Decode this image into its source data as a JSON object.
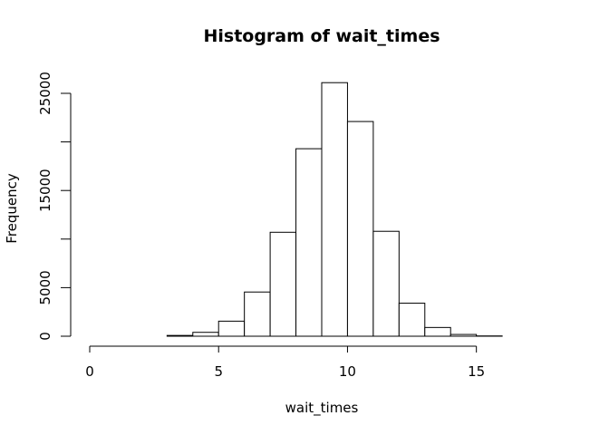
{
  "chart_data": {
    "type": "bar",
    "title": "Histogram of wait_times",
    "xlabel": "wait_times",
    "ylabel": "Frequency",
    "xlim": [
      0,
      18
    ],
    "ylim": [
      0,
      26000
    ],
    "x_ticks": [
      0,
      5,
      10,
      15
    ],
    "x_tick_labels": [
      "0",
      "5",
      "10",
      "15"
    ],
    "y_ticks": [
      0,
      5000,
      10000,
      15000,
      20000,
      25000
    ],
    "y_tick_labels": [
      "0",
      "5000",
      "",
      "15000",
      "",
      "25000"
    ],
    "bins": [
      {
        "start": 0,
        "end": 1,
        "count": 0
      },
      {
        "start": 1,
        "end": 2,
        "count": 0
      },
      {
        "start": 2,
        "end": 3,
        "count": 0
      },
      {
        "start": 3,
        "end": 4,
        "count": 80
      },
      {
        "start": 4,
        "end": 5,
        "count": 400
      },
      {
        "start": 5,
        "end": 6,
        "count": 1550
      },
      {
        "start": 6,
        "end": 7,
        "count": 4550
      },
      {
        "start": 7,
        "end": 8,
        "count": 10700
      },
      {
        "start": 8,
        "end": 9,
        "count": 19300
      },
      {
        "start": 9,
        "end": 10,
        "count": 26100
      },
      {
        "start": 10,
        "end": 11,
        "count": 22100
      },
      {
        "start": 11,
        "end": 12,
        "count": 10800
      },
      {
        "start": 12,
        "end": 13,
        "count": 3400
      },
      {
        "start": 13,
        "end": 14,
        "count": 900
      },
      {
        "start": 14,
        "end": 15,
        "count": 180
      },
      {
        "start": 15,
        "end": 16,
        "count": 30
      },
      {
        "start": 16,
        "end": 17,
        "count": 0
      },
      {
        "start": 17,
        "end": 18,
        "count": 0
      }
    ],
    "grid": false,
    "legend": "none"
  }
}
